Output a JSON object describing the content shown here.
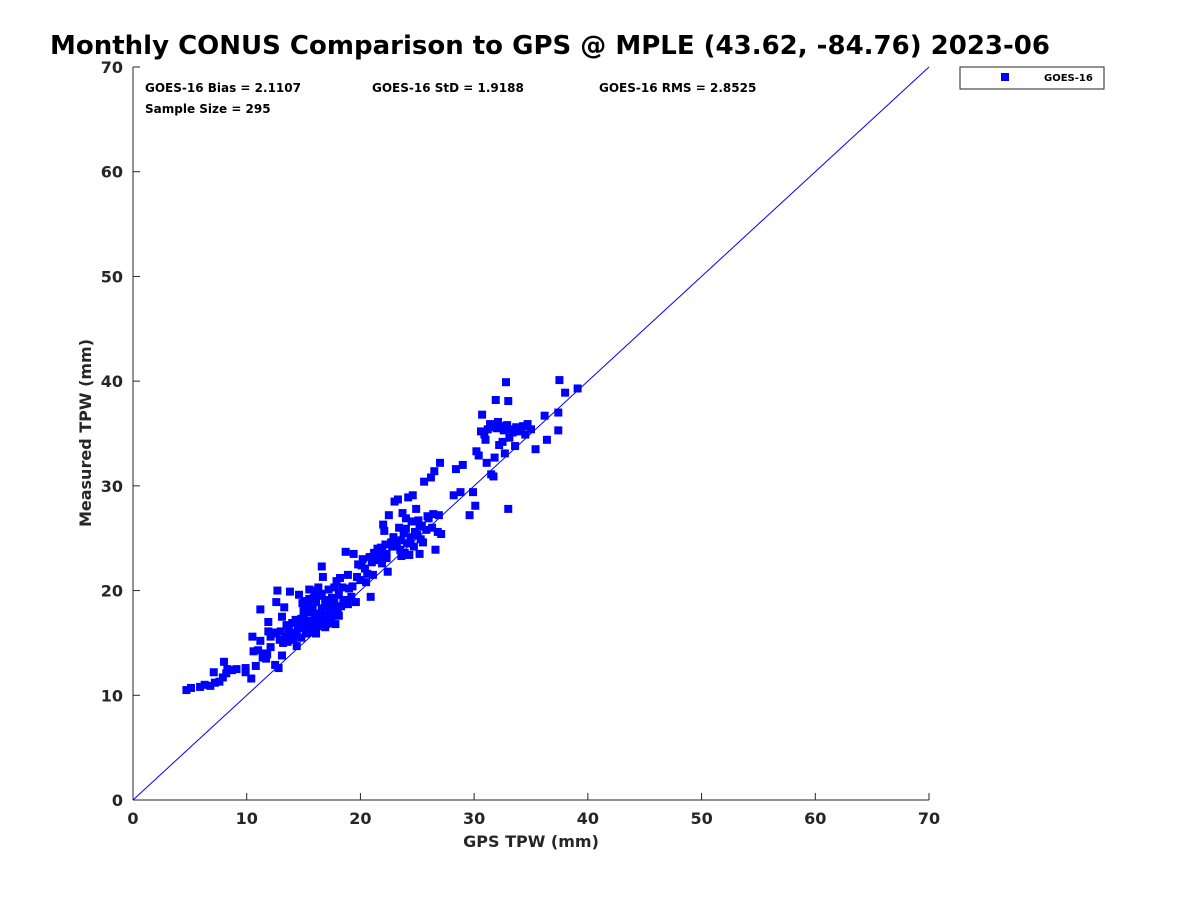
{
  "chart_data": {
    "type": "scatter",
    "title": "Monthly CONUS Comparison to GPS @ MPLE (43.62, -84.76) 2023-06",
    "xlabel": "GPS TPW (mm)",
    "ylabel": "Measured TPW (mm)",
    "xlim": [
      0,
      70
    ],
    "ylim": [
      0,
      70
    ],
    "xticks": [
      0,
      10,
      20,
      30,
      40,
      50,
      60,
      70
    ],
    "yticks": [
      0,
      10,
      20,
      30,
      40,
      50,
      60,
      70
    ],
    "grid": false,
    "reference_line": {
      "name": "1:1 line",
      "from": [
        0,
        0
      ],
      "to": [
        70,
        70
      ],
      "color": "#0000ff"
    },
    "stats": {
      "bias": "GOES-16 Bias = 2.1107",
      "std": "GOES-16 StD = 1.9188",
      "rms": "GOES-16 RMS = 2.8525",
      "sample_size": "Sample Size = 295"
    },
    "legend": {
      "position": "outside-top-right",
      "entries": [
        {
          "label": "GOES-16",
          "color": "#0000ff",
          "marker": "square"
        }
      ]
    },
    "series": [
      {
        "name": "GOES-16",
        "color": "#0000ff",
        "points": [
          [
            4.7,
            10.5
          ],
          [
            5.1,
            10.7
          ],
          [
            5.9,
            10.8
          ],
          [
            6.3,
            11.0
          ],
          [
            6.8,
            10.9
          ],
          [
            7.2,
            11.2
          ],
          [
            7.1,
            12.2
          ],
          [
            7.6,
            11.3
          ],
          [
            7.9,
            11.7
          ],
          [
            8.2,
            12.1
          ],
          [
            8.3,
            12.5
          ],
          [
            8.0,
            13.2
          ],
          [
            8.7,
            12.4
          ],
          [
            9.1,
            12.5
          ],
          [
            9.9,
            12.2
          ],
          [
            9.9,
            12.6
          ],
          [
            10.4,
            11.6
          ],
          [
            10.6,
            14.2
          ],
          [
            10.5,
            15.6
          ],
          [
            10.8,
            12.8
          ],
          [
            11.0,
            14.3
          ],
          [
            11.2,
            15.2
          ],
          [
            11.2,
            18.2
          ],
          [
            11.4,
            13.6
          ],
          [
            11.6,
            14.0
          ],
          [
            11.7,
            13.5
          ],
          [
            11.9,
            16.1
          ],
          [
            11.9,
            17.0
          ],
          [
            12.1,
            15.6
          ],
          [
            12.3,
            15.9
          ],
          [
            12.5,
            12.9
          ],
          [
            12.6,
            16.0
          ],
          [
            12.6,
            18.9
          ],
          [
            12.7,
            20.0
          ],
          [
            12.8,
            12.6
          ],
          [
            12.9,
            15.3
          ],
          [
            13.0,
            16.1
          ],
          [
            13.1,
            17.5
          ],
          [
            13.1,
            13.8
          ],
          [
            13.3,
            18.4
          ],
          [
            13.4,
            15.6
          ],
          [
            13.5,
            16.7
          ],
          [
            13.6,
            15.1
          ],
          [
            13.7,
            16.2
          ],
          [
            13.8,
            19.9
          ],
          [
            13.9,
            15.8
          ],
          [
            14.0,
            16.9
          ],
          [
            14.1,
            15.3
          ],
          [
            14.3,
            17.2
          ],
          [
            14.4,
            15.8
          ],
          [
            14.5,
            16.4
          ],
          [
            14.6,
            19.6
          ],
          [
            14.7,
            17.0
          ],
          [
            14.8,
            15.5
          ],
          [
            14.9,
            16.6
          ],
          [
            14.9,
            18.8
          ],
          [
            15.0,
            17.4
          ],
          [
            15.1,
            19.0
          ],
          [
            15.2,
            16.8
          ],
          [
            15.3,
            17.9
          ],
          [
            15.4,
            18.5
          ],
          [
            15.5,
            16.3
          ],
          [
            15.5,
            20.1
          ],
          [
            15.6,
            17.1
          ],
          [
            15.7,
            16.0
          ],
          [
            15.8,
            18.2
          ],
          [
            15.8,
            16.6
          ],
          [
            15.9,
            19.3
          ],
          [
            16.0,
            17.5
          ],
          [
            16.1,
            15.9
          ],
          [
            16.1,
            18.9
          ],
          [
            16.2,
            16.6
          ],
          [
            16.3,
            20.3
          ],
          [
            16.3,
            17.8
          ],
          [
            16.4,
            19.5
          ],
          [
            16.5,
            16.9
          ],
          [
            16.6,
            18.3
          ],
          [
            16.6,
            22.3
          ],
          [
            16.7,
            21.3
          ],
          [
            16.8,
            17.6
          ],
          [
            16.9,
            19.0
          ],
          [
            17.0,
            16.8
          ],
          [
            17.0,
            18.6
          ],
          [
            17.1,
            17.2
          ],
          [
            17.2,
            20.1
          ],
          [
            17.3,
            18.1
          ],
          [
            17.4,
            16.9
          ],
          [
            17.5,
            19.3
          ],
          [
            17.6,
            17.6
          ],
          [
            17.7,
            18.9
          ],
          [
            17.8,
            16.8
          ],
          [
            17.9,
            20.9
          ],
          [
            18.0,
            17.9
          ],
          [
            18.1,
            19.6
          ],
          [
            18.2,
            21.2
          ],
          [
            18.3,
            18.5
          ],
          [
            18.4,
            20.3
          ],
          [
            18.6,
            19.1
          ],
          [
            18.7,
            23.7
          ],
          [
            18.9,
            21.5
          ],
          [
            19.0,
            20.2
          ],
          [
            19.2,
            19.4
          ],
          [
            19.4,
            23.5
          ],
          [
            19.6,
            18.9
          ],
          [
            19.8,
            22.5
          ],
          [
            20.0,
            21.0
          ],
          [
            20.2,
            23.0
          ],
          [
            20.4,
            22.1
          ],
          [
            20.6,
            21.6
          ],
          [
            20.8,
            23.2
          ],
          [
            20.9,
            19.4
          ],
          [
            21.0,
            22.7
          ],
          [
            21.2,
            23.6
          ],
          [
            21.4,
            22.9
          ],
          [
            21.6,
            23.3
          ],
          [
            21.8,
            24.1
          ],
          [
            21.9,
            22.6
          ],
          [
            22.0,
            26.3
          ],
          [
            22.1,
            25.7
          ],
          [
            22.2,
            24.4
          ],
          [
            22.3,
            23.1
          ],
          [
            22.4,
            21.8
          ],
          [
            22.5,
            27.2
          ],
          [
            22.7,
            24.6
          ],
          [
            22.9,
            25.1
          ],
          [
            23.0,
            28.5
          ],
          [
            23.1,
            24.3
          ],
          [
            23.3,
            28.7
          ],
          [
            23.4,
            26.0
          ],
          [
            23.5,
            23.9
          ],
          [
            23.6,
            24.8
          ],
          [
            23.7,
            27.4
          ],
          [
            23.8,
            25.5
          ],
          [
            23.9,
            23.6
          ],
          [
            24.0,
            26.9
          ],
          [
            24.1,
            24.5
          ],
          [
            24.2,
            28.9
          ],
          [
            24.3,
            23.4
          ],
          [
            24.4,
            25.1
          ],
          [
            24.5,
            26.6
          ],
          [
            24.6,
            29.1
          ],
          [
            24.7,
            24.2
          ],
          [
            24.9,
            27.8
          ],
          [
            25.0,
            25.3
          ],
          [
            25.1,
            26.7
          ],
          [
            25.2,
            23.5
          ],
          [
            25.3,
            24.9
          ],
          [
            25.4,
            26.2
          ],
          [
            25.6,
            30.4
          ],
          [
            25.8,
            25.8
          ],
          [
            26.0,
            26.9
          ],
          [
            26.2,
            30.8
          ],
          [
            26.4,
            27.3
          ],
          [
            26.5,
            31.4
          ],
          [
            26.6,
            23.9
          ],
          [
            26.8,
            25.6
          ],
          [
            26.9,
            27.2
          ],
          [
            27.0,
            32.2
          ],
          [
            27.1,
            25.4
          ],
          [
            28.2,
            29.1
          ],
          [
            28.4,
            31.6
          ],
          [
            28.8,
            29.4
          ],
          [
            29.0,
            32.0
          ],
          [
            29.6,
            27.2
          ],
          [
            29.9,
            29.4
          ],
          [
            30.1,
            28.1
          ],
          [
            30.2,
            33.3
          ],
          [
            30.4,
            32.9
          ],
          [
            30.6,
            35.2
          ],
          [
            30.7,
            36.8
          ],
          [
            30.9,
            34.9
          ],
          [
            31.0,
            34.4
          ],
          [
            31.1,
            32.2
          ],
          [
            31.2,
            35.4
          ],
          [
            31.4,
            35.9
          ],
          [
            31.5,
            31.1
          ],
          [
            31.6,
            35.6
          ],
          [
            31.7,
            30.9
          ],
          [
            31.8,
            32.7
          ],
          [
            31.9,
            38.2
          ],
          [
            32.0,
            35.5
          ],
          [
            32.1,
            36.1
          ],
          [
            32.2,
            33.9
          ],
          [
            32.3,
            35.7
          ],
          [
            32.5,
            34.2
          ],
          [
            32.6,
            35.3
          ],
          [
            32.7,
            33.1
          ],
          [
            32.8,
            39.9
          ],
          [
            32.9,
            35.8
          ],
          [
            33.0,
            38.1
          ],
          [
            33.1,
            34.6
          ],
          [
            33.2,
            35.4
          ],
          [
            33.4,
            35.1
          ],
          [
            33.0,
            27.8
          ],
          [
            33.6,
            33.8
          ],
          [
            33.7,
            35.6
          ],
          [
            33.9,
            35.3
          ],
          [
            34.1,
            35.2
          ],
          [
            34.3,
            35.7
          ],
          [
            34.5,
            34.9
          ],
          [
            34.7,
            35.9
          ],
          [
            35.0,
            35.4
          ],
          [
            35.4,
            33.5
          ],
          [
            36.2,
            36.7
          ],
          [
            36.4,
            34.4
          ],
          [
            37.4,
            35.3
          ],
          [
            37.4,
            37.0
          ],
          [
            37.5,
            40.1
          ],
          [
            38.0,
            38.9
          ],
          [
            39.1,
            39.3
          ],
          [
            11.8,
            13.9
          ],
          [
            12.1,
            14.6
          ],
          [
            13.2,
            15.0
          ],
          [
            13.9,
            15.4
          ],
          [
            14.2,
            16.0
          ],
          [
            14.8,
            17.3
          ],
          [
            15.2,
            15.9
          ],
          [
            15.9,
            17.0
          ],
          [
            16.4,
            17.3
          ],
          [
            16.9,
            16.5
          ],
          [
            17.3,
            17.4
          ],
          [
            17.6,
            18.5
          ],
          [
            18.1,
            17.6
          ],
          [
            18.5,
            19.0
          ],
          [
            18.9,
            18.7
          ],
          [
            19.3,
            20.4
          ],
          [
            19.7,
            21.3
          ],
          [
            20.1,
            22.4
          ],
          [
            20.5,
            20.8
          ],
          [
            21.1,
            21.5
          ],
          [
            21.5,
            24.0
          ],
          [
            21.9,
            23.7
          ],
          [
            22.3,
            23.5
          ],
          [
            22.8,
            24.2
          ],
          [
            23.2,
            24.6
          ],
          [
            23.6,
            23.3
          ],
          [
            24.0,
            25.9
          ],
          [
            24.4,
            24.7
          ],
          [
            24.8,
            25.6
          ],
          [
            25.2,
            26.1
          ],
          [
            25.5,
            24.6
          ],
          [
            25.9,
            27.1
          ],
          [
            26.3,
            26.0
          ],
          [
            14.4,
            14.7
          ],
          [
            15.0,
            18.1
          ],
          [
            15.5,
            19.2
          ],
          [
            16.0,
            20.0
          ],
          [
            16.6,
            19.7
          ],
          [
            17.2,
            19.1
          ],
          [
            17.7,
            20.3
          ]
        ]
      }
    ]
  }
}
